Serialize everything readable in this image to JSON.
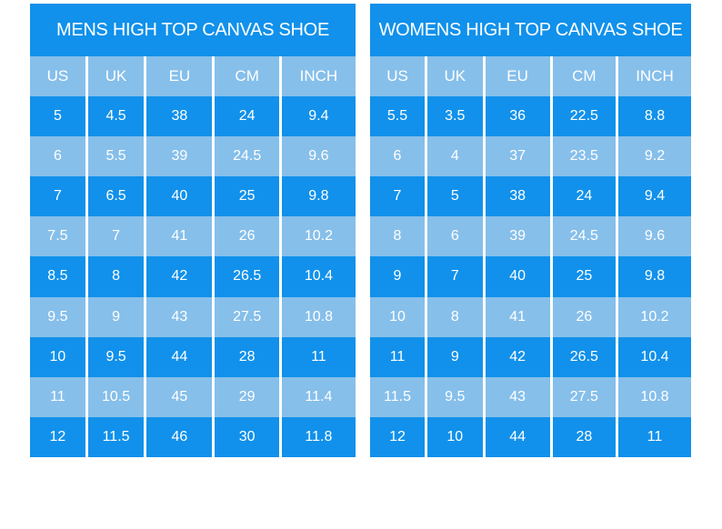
{
  "colors": {
    "primary_blue": "#1191eb",
    "light_blue": "#86bfea",
    "text_white": "#ffffff",
    "separator_white": "#ffffff",
    "page_background": "#ffffff"
  },
  "chart_data": [
    {
      "type": "table",
      "title": "MENS HIGH TOP CANVAS SHOE",
      "columns": [
        "US",
        "UK",
        "EU",
        "CM",
        "INCH"
      ],
      "rows": [
        [
          "5",
          "4.5",
          "38",
          "24",
          "9.4"
        ],
        [
          "6",
          "5.5",
          "39",
          "24.5",
          "9.6"
        ],
        [
          "7",
          "6.5",
          "40",
          "25",
          "9.8"
        ],
        [
          "7.5",
          "7",
          "41",
          "26",
          "10.2"
        ],
        [
          "8.5",
          "8",
          "42",
          "26.5",
          "10.4"
        ],
        [
          "9.5",
          "9",
          "43",
          "27.5",
          "10.8"
        ],
        [
          "10",
          "9.5",
          "44",
          "28",
          "11"
        ],
        [
          "11",
          "10.5",
          "45",
          "29",
          "11.4"
        ],
        [
          "12",
          "11.5",
          "46",
          "30",
          "11.8"
        ]
      ]
    },
    {
      "type": "table",
      "title": "WOMENS HIGH TOP CANVAS SHOE",
      "columns": [
        "US",
        "UK",
        "EU",
        "CM",
        "INCH"
      ],
      "rows": [
        [
          "5.5",
          "3.5",
          "36",
          "22.5",
          "8.8"
        ],
        [
          "6",
          "4",
          "37",
          "23.5",
          "9.2"
        ],
        [
          "7",
          "5",
          "38",
          "24",
          "9.4"
        ],
        [
          "8",
          "6",
          "39",
          "24.5",
          "9.6"
        ],
        [
          "9",
          "7",
          "40",
          "25",
          "9.8"
        ],
        [
          "10",
          "8",
          "41",
          "26",
          "10.2"
        ],
        [
          "11",
          "9",
          "42",
          "26.5",
          "10.4"
        ],
        [
          "11.5",
          "9.5",
          "43",
          "27.5",
          "10.8"
        ],
        [
          "12",
          "10",
          "44",
          "28",
          "11"
        ]
      ]
    }
  ]
}
